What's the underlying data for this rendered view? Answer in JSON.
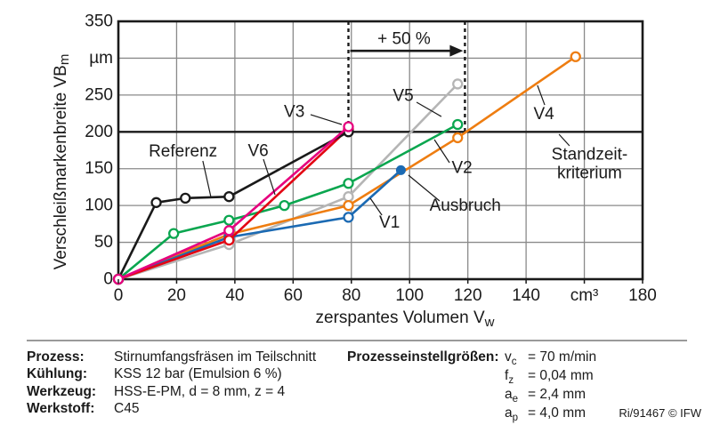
{
  "chart_data": {
    "type": "line",
    "title": "",
    "xlabel": {
      "main": "zerspantes Volumen V",
      "sub": "w"
    },
    "ylabel": {
      "main": "Verschleißmarkenbreite VB",
      "sub": "m"
    },
    "xlim": [
      0,
      180
    ],
    "ylim": [
      0,
      350
    ],
    "grid": true,
    "x_ticks": [
      {
        "v": 0,
        "label": "0"
      },
      {
        "v": 20,
        "label": "20"
      },
      {
        "v": 40,
        "label": "40"
      },
      {
        "v": 60,
        "label": "60"
      },
      {
        "v": 80,
        "label": "80"
      },
      {
        "v": 100,
        "label": "100"
      },
      {
        "v": 120,
        "label": "120"
      },
      {
        "v": 140,
        "label": "140"
      },
      {
        "v": 160,
        "label": "cm³"
      },
      {
        "v": 180,
        "label": "180"
      }
    ],
    "y_ticks": [
      {
        "v": 0,
        "label": "0"
      },
      {
        "v": 50,
        "label": "50"
      },
      {
        "v": 100,
        "label": "100"
      },
      {
        "v": 150,
        "label": "150"
      },
      {
        "v": 200,
        "label": "200"
      },
      {
        "v": 250,
        "label": "250"
      },
      {
        "v": 300,
        "label": "µm"
      },
      {
        "v": 350,
        "label": "350"
      }
    ],
    "criterion": {
      "y": 200
    },
    "dashed_lines_x": [
      79,
      119
    ],
    "arrow": {
      "label": "+ 50 %",
      "from_x": 79,
      "to_x": 119,
      "y": 310,
      "label_y": 326
    },
    "series": [
      {
        "name": "V5",
        "color": "#b5b5b5",
        "points": [
          [
            0,
            0
          ],
          [
            38,
            47
          ],
          [
            79,
            112
          ],
          [
            116.5,
            265
          ]
        ]
      },
      {
        "name": "V4",
        "color": "#ee7d11",
        "points": [
          [
            0,
            0
          ],
          [
            38,
            61
          ],
          [
            79,
            100
          ],
          [
            116.5,
            192
          ],
          [
            157,
            302
          ]
        ]
      },
      {
        "name": "V2",
        "color": "#0aa64f",
        "points": [
          [
            0,
            0
          ],
          [
            19,
            62
          ],
          [
            38,
            80
          ],
          [
            57,
            100
          ],
          [
            79,
            130
          ],
          [
            116.5,
            210
          ]
        ]
      },
      {
        "name": "V1",
        "color": "#1b6ab3",
        "points": [
          [
            0,
            0
          ],
          [
            38,
            57
          ],
          [
            79,
            84
          ],
          [
            97,
            148
          ]
        ],
        "fill_last": true
      },
      {
        "name": "V3",
        "color": "#e30613",
        "points": [
          [
            0,
            0
          ],
          [
            38,
            53
          ],
          [
            79,
            204
          ]
        ]
      },
      {
        "name": "Referenz",
        "color": "#1a1a1a",
        "points": [
          [
            0,
            0
          ],
          [
            13,
            104
          ],
          [
            23,
            110
          ],
          [
            38,
            112
          ],
          [
            79,
            200
          ]
        ]
      },
      {
        "name": "V6",
        "color": "#e6007e",
        "points": [
          [
            0,
            0
          ],
          [
            38,
            66
          ],
          [
            79,
            207
          ]
        ]
      }
    ],
    "annotations": [
      {
        "text": "Referenz",
        "x": 22.2,
        "y": 173.7,
        "anchor": "middle",
        "pointer": [
          29.0,
          160.5,
          31.8,
          111.0
        ]
      },
      {
        "text": "V6",
        "x": 48.0,
        "y": 174.3,
        "anchor": "middle",
        "pointer": [
          49.8,
          162.9,
          53.8,
          114.6
        ]
      },
      {
        "text": "V3",
        "x": 60.4,
        "y": 227.4,
        "anchor": "middle",
        "pointer": [
          66.0,
          223.3,
          76.7,
          210.0
        ]
      },
      {
        "text": "V5",
        "x": 97.8,
        "y": 249.1,
        "anchor": "middle",
        "pointer": [
          102.4,
          240.2,
          110.9,
          220.8
        ]
      },
      {
        "text": "V2",
        "x": 118.0,
        "y": 151.4,
        "anchor": "middle",
        "pointer": [
          113.7,
          158.1,
          108.5,
          189.5
        ]
      },
      {
        "text": "V4",
        "x": 146.1,
        "y": 224.4,
        "anchor": "middle",
        "pointer": [
          146.4,
          236.5,
          143.9,
          263.1
        ]
      },
      {
        "text": "V1",
        "x": 93.1,
        "y": 77.2,
        "anchor": "middle",
        "pointer": [
          90.5,
          86.9,
          86.5,
          109.8
        ]
      },
      {
        "text": "Ausbruch",
        "x": 119.1,
        "y": 100.1,
        "anchor": "middle",
        "pointer": [
          110.3,
          106.2,
          99.6,
          141.2
        ]
      },
      {
        "text": "Standzeit-\nkriterium",
        "x": 161.8,
        "y": 157.0,
        "anchor": "middle",
        "pointer": [
          154.9,
          181.0,
          151.3,
          196.7
        ]
      }
    ]
  },
  "footer": {
    "left_rows": [
      {
        "label": "Prozess:",
        "value": "Stirnumfangsfräsen im Teilschnitt"
      },
      {
        "label": "Kühlung:",
        "value": "KSS 12 bar (Emulsion 6 %)"
      },
      {
        "label": "Werkzeug:",
        "value": "HSS-E-PM, d = 8 mm, z = 4"
      },
      {
        "label": "Werkstoff:",
        "value": "C45"
      }
    ],
    "right_header": "Prozesseinstellgrößen:",
    "params": [
      {
        "sym": "v",
        "sub": "c",
        "value": "= 70 m/min"
      },
      {
        "sym": "f",
        "sub": "z",
        "value": "= 0,04 mm"
      },
      {
        "sym": "a",
        "sub": "e",
        "value": "= 2,4 mm"
      },
      {
        "sym": "a",
        "sub": "p",
        "value": "= 4,0 mm"
      }
    ],
    "credit": "Ri/91467 © IFW"
  }
}
